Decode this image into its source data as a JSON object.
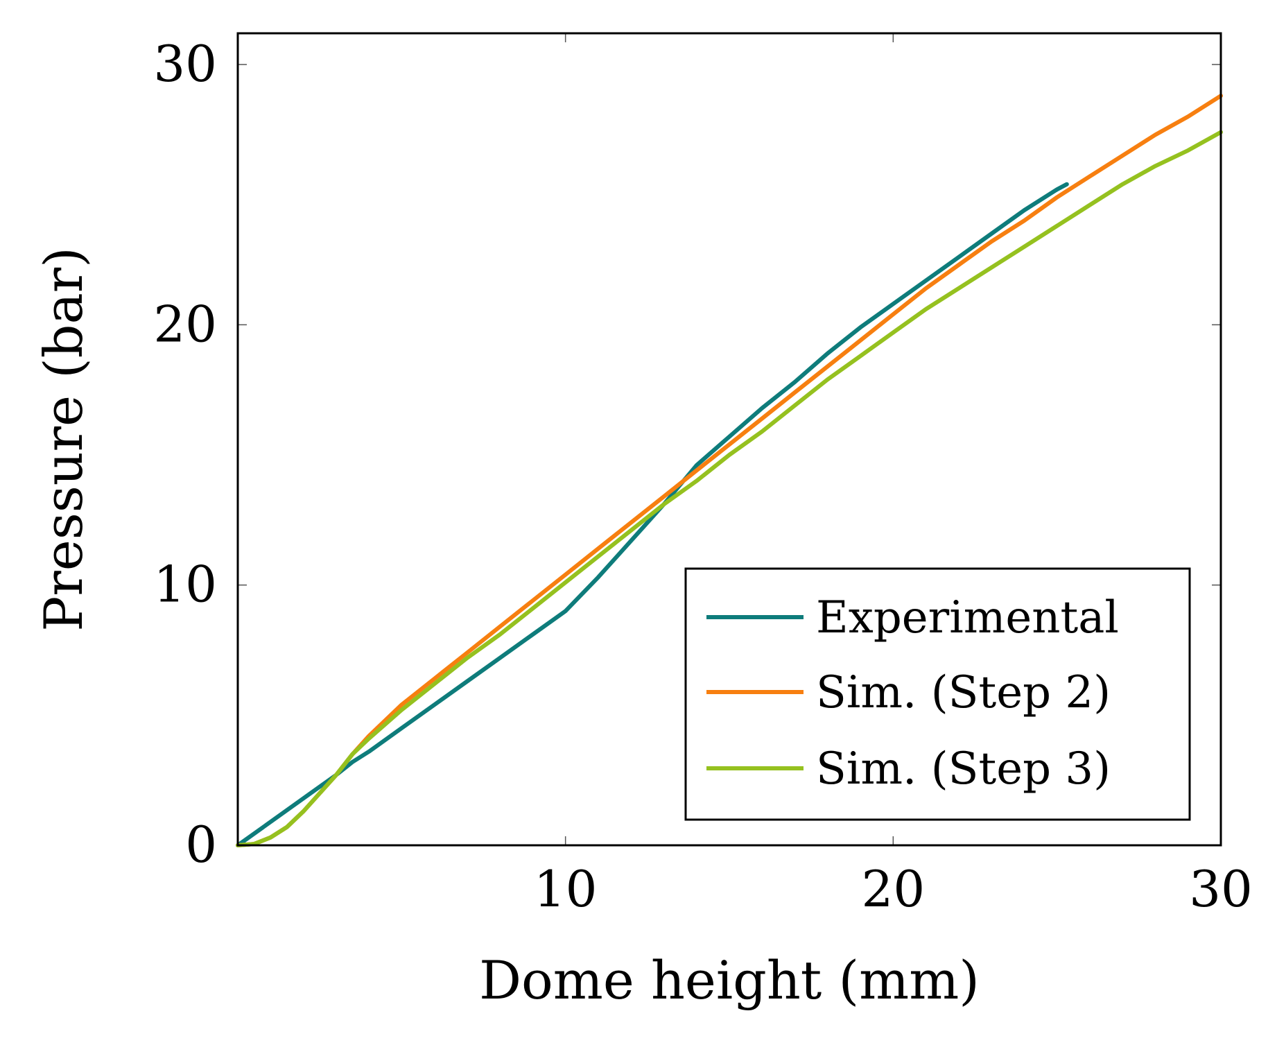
{
  "chart_data": {
    "type": "line",
    "title": "",
    "xlabel": "Dome height (mm)",
    "ylabel": "Pressure (bar)",
    "xlim": [
      0,
      30
    ],
    "ylim": [
      0,
      31.2
    ],
    "x_ticks": [
      10,
      20,
      30
    ],
    "y_ticks": [
      0,
      10,
      20,
      30
    ],
    "x_tick_labels": [
      "10",
      "20",
      "30"
    ],
    "y_tick_labels": [
      "0",
      "10",
      "20",
      "30"
    ],
    "grid": false,
    "legend_position": "bottom-right",
    "series": [
      {
        "name": "Experimental",
        "color": "#0e7c7b",
        "x": [
          0,
          1,
          2,
          3,
          3.5,
          4,
          5,
          6,
          7,
          8,
          9,
          10,
          11,
          12,
          13,
          14,
          15,
          16,
          17,
          18,
          19,
          20,
          21,
          22,
          23,
          24,
          25,
          25.3
        ],
        "y": [
          0,
          0.9,
          1.8,
          2.7,
          3.2,
          3.6,
          4.5,
          5.4,
          6.3,
          7.2,
          8.1,
          9.0,
          10.3,
          11.7,
          13.1,
          14.6,
          15.7,
          16.8,
          17.8,
          18.9,
          19.9,
          20.8,
          21.7,
          22.6,
          23.5,
          24.4,
          25.2,
          25.4
        ]
      },
      {
        "name": "Sim. (Step 2)",
        "color": "#f77f10",
        "x": [
          0,
          0.5,
          1,
          1.5,
          2,
          2.5,
          3,
          3.5,
          4,
          5,
          6,
          7,
          8,
          9,
          10,
          11,
          12,
          13,
          14,
          15,
          16,
          17,
          18,
          19,
          20,
          21,
          22,
          23,
          24,
          25,
          26,
          27,
          28,
          29,
          30
        ],
        "y": [
          0,
          0.05,
          0.3,
          0.7,
          1.3,
          2.0,
          2.7,
          3.5,
          4.2,
          5.4,
          6.4,
          7.4,
          8.4,
          9.4,
          10.4,
          11.4,
          12.4,
          13.4,
          14.4,
          15.4,
          16.4,
          17.4,
          18.4,
          19.4,
          20.4,
          21.4,
          22.3,
          23.2,
          24.0,
          24.9,
          25.7,
          26.5,
          27.3,
          28.0,
          28.8
        ]
      },
      {
        "name": "Sim. (Step 3)",
        "color": "#95c11f",
        "x": [
          0,
          0.5,
          1,
          1.5,
          2,
          2.5,
          3,
          3.5,
          4,
          5,
          6,
          7,
          8,
          9,
          10,
          11,
          12,
          13,
          14,
          15,
          16,
          17,
          18,
          19,
          20,
          21,
          22,
          23,
          24,
          25,
          26,
          27,
          28,
          29,
          30
        ],
        "y": [
          0,
          0.05,
          0.3,
          0.7,
          1.3,
          2.0,
          2.7,
          3.5,
          4.1,
          5.2,
          6.2,
          7.2,
          8.1,
          9.1,
          10.1,
          11.1,
          12.1,
          13.1,
          14.0,
          15.0,
          15.9,
          16.9,
          17.9,
          18.8,
          19.7,
          20.6,
          21.4,
          22.2,
          23.0,
          23.8,
          24.6,
          25.4,
          26.1,
          26.7,
          27.4
        ]
      }
    ]
  }
}
